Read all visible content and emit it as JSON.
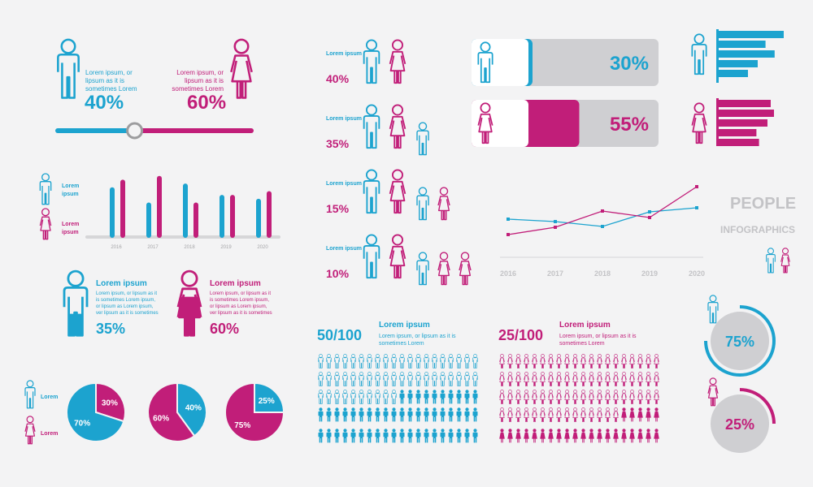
{
  "colors": {
    "blue": "#1ca3cf",
    "pink": "#c11e79",
    "grey": "#cfcfd2",
    "axis": "#d6d6d8"
  },
  "title": {
    "line1": "PEOPLE",
    "line2": "INFOGRAPHICS"
  },
  "split_slider": {
    "caption_male": "Lorem ipsum, or lipsum as it is sometimes Lorem",
    "caption_female": "Lorem ipsum, or lipsum as it is sometimes Lorem",
    "male_pct": "40%",
    "female_pct": "60%",
    "male_fraction": 0.4
  },
  "bar_legend": {
    "male": "Lorem ipsum",
    "female": "Lorem ipsum"
  },
  "family_list": [
    {
      "label": "Lorem ipsum",
      "pct": "40%",
      "adults": 2,
      "kids": 0
    },
    {
      "label": "Lorem ipsum",
      "pct": "35%",
      "adults": 2,
      "kids": 1
    },
    {
      "label": "Lorem ipsum",
      "pct": "15%",
      "adults": 2,
      "kids": 2
    },
    {
      "label": "Lorem ipsum",
      "pct": "10%",
      "adults": 2,
      "kids": 3
    }
  ],
  "progress_bars": [
    {
      "label": "30%",
      "fraction": 0.3,
      "color": "blue"
    },
    {
      "label": "55%",
      "fraction": 0.55,
      "color": "pink"
    }
  ],
  "fill_figures": [
    {
      "title": "Lorem ipsum",
      "text": "Lorem ipsum, or lipsum as it is sometimes Lorem ipsum, or lipsum as Lorem ipsum, ver lipsum as it is sometimes",
      "pct": "35%",
      "fraction": 0.35
    },
    {
      "title": "Lorem ipsum",
      "text": "Lorem ipsum, or lipsum as it is sometimes Lorem ipsum, or lipsum as Lorem ipsum, ver lipsum as it is sometimes",
      "pct": "60%",
      "fraction": 0.6
    }
  ],
  "pie_legend": {
    "male": "Lorem",
    "female": "Lorem"
  },
  "crowds": [
    {
      "ratio": "50/100",
      "title": "Lorem ipsum",
      "text": "Lorem ipsum, or lipsum as it is sometimes Lorem",
      "filled": 50,
      "total": 100
    },
    {
      "ratio": "25/100",
      "title": "Lorem ipsum",
      "text": "Lorem ipsum, or lipsum as it is sometimes Lorem",
      "filled": 25,
      "total": 100
    }
  ],
  "rings": [
    {
      "label": "75%",
      "fraction": 0.75
    },
    {
      "label": "25%",
      "fraction": 0.25
    }
  ],
  "chart_data": [
    {
      "type": "bar",
      "categories": [
        "2016",
        "2017",
        "2018",
        "2019",
        "2020"
      ],
      "series": [
        {
          "values": [
            60,
            40,
            65,
            50,
            45
          ]
        },
        {
          "values": [
            70,
            75,
            40,
            50,
            55
          ]
        }
      ],
      "ylim": [
        0,
        80
      ]
    },
    {
      "type": "line",
      "categories": [
        "2016",
        "2017",
        "2018",
        "2019",
        "2020"
      ],
      "series": [
        {
          "values": [
            45,
            42,
            36,
            54,
            59
          ]
        },
        {
          "values": [
            26,
            35,
            55,
            47,
            85
          ]
        }
      ],
      "ylim": [
        0,
        100
      ]
    },
    {
      "type": "bar",
      "orientation": "horizontal",
      "series": [
        {
          "values": [
            100,
            72,
            86,
            60,
            45
          ]
        },
        {
          "values": [
            80,
            85,
            75,
            58,
            62
          ]
        }
      ],
      "xlim": [
        0,
        100
      ]
    },
    {
      "type": "pie",
      "slices": [
        {
          "label": "70%",
          "value": 70
        },
        {
          "label": "30%",
          "value": 30
        }
      ]
    },
    {
      "type": "pie",
      "slices": [
        {
          "label": "40%",
          "value": 40
        },
        {
          "label": "60%",
          "value": 60
        }
      ]
    },
    {
      "type": "pie",
      "slices": [
        {
          "label": "25%",
          "value": 25
        },
        {
          "label": "75%",
          "value": 75
        }
      ]
    }
  ]
}
